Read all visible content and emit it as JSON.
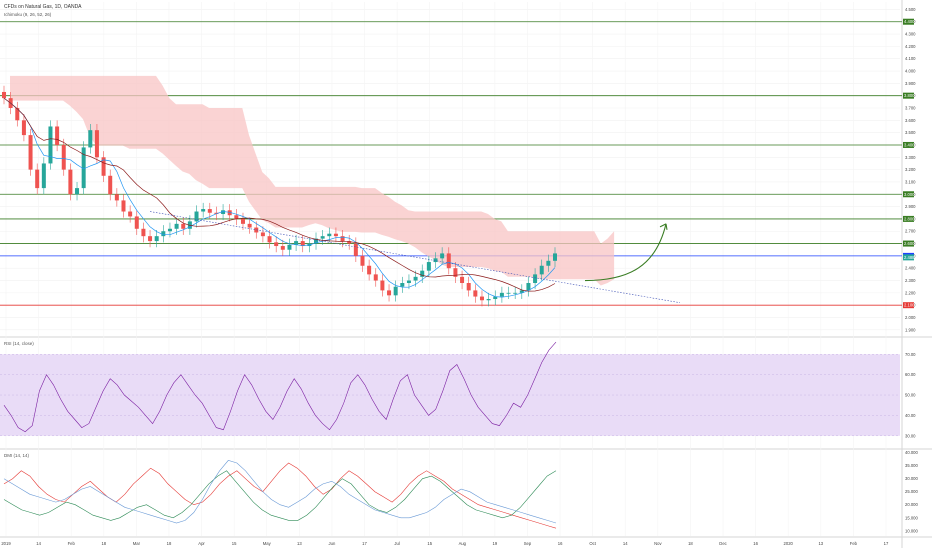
{
  "header": {
    "title": "CFDs on Natural Gas, 1D, OANDA",
    "indicator": "Ichimoku (9, 26, 52, 26)",
    "rsi_label": "RSI (14, close)",
    "dmi_label": "DMI (14, 14)"
  },
  "colors": {
    "up": "#26a69a",
    "down": "#ef5350",
    "tenkan": "#2196f3",
    "kijun": "#8b1a1a",
    "cloud_bull": "#b7e1b0",
    "cloud_bear": "#f8c4c4",
    "level_green": "#3a7d24",
    "level_red": "#e53935",
    "level_blue": "#1e40ff",
    "rsi_band": "#e9dcf7",
    "plus_di": "#2e8b57",
    "minus_di": "#e53935",
    "adx": "#6a9ad6"
  },
  "chart_data": [
    {
      "type": "line",
      "title": "CFDs on Natural Gas, 1D, OANDA",
      "x_ticks": [
        "2019",
        "14",
        "Feb",
        "18",
        "Mar",
        "18",
        "Apr",
        "15",
        "May",
        "13",
        "Jun",
        "17",
        "Jul",
        "15",
        "Aug",
        "19",
        "Sep",
        "16",
        "Oct",
        "14",
        "Nov",
        "18",
        "Dec",
        "16",
        "2020",
        "13",
        "Feb",
        "17"
      ],
      "y_ticks": [
        "1.900",
        "2.000",
        "2.100",
        "2.200",
        "2.300",
        "2.400",
        "2.500",
        "2.600",
        "2.700",
        "2.800",
        "2.900",
        "3.000",
        "3.100",
        "3.200",
        "3.300",
        "3.400",
        "3.500",
        "3.600",
        "3.700",
        "3.800",
        "3.900",
        "4.000",
        "4.100",
        "4.200",
        "4.300",
        "4.400",
        "4.500"
      ],
      "ylim": [
        1.85,
        4.56
      ],
      "levels": [
        {
          "value": 4.4,
          "label": "4.400",
          "color": "#3a7d24"
        },
        {
          "value": 3.8,
          "label": "3.800",
          "color": "#3a7d24"
        },
        {
          "value": 3.4,
          "label": "3.400",
          "color": "#3a7d24"
        },
        {
          "value": 3.0,
          "label": "3.000",
          "color": "#3a7d24"
        },
        {
          "value": 2.8,
          "label": "2.800",
          "color": "#3a7d24"
        },
        {
          "value": 2.6,
          "label": "2.600",
          "color": "#3a7d24"
        },
        {
          "value": 2.5,
          "label": "2.500",
          "color": "#1e40ff"
        },
        {
          "value": 2.1,
          "label": "2.100",
          "color": "#e53935"
        }
      ],
      "last_price": 2.488,
      "last_price_label": "2.488",
      "close_series": [
        3.78,
        3.7,
        3.6,
        3.48,
        3.2,
        3.05,
        3.25,
        3.55,
        3.4,
        3.2,
        3.0,
        3.05,
        3.38,
        3.52,
        3.3,
        3.15,
        3.0,
        2.95,
        2.86,
        2.82,
        2.72,
        2.66,
        2.62,
        2.66,
        2.7,
        2.72,
        2.76,
        2.72,
        2.78,
        2.86,
        2.88,
        2.85,
        2.84,
        2.87,
        2.83,
        2.8,
        2.76,
        2.73,
        2.69,
        2.66,
        2.61,
        2.58,
        2.55,
        2.59,
        2.62,
        2.58,
        2.6,
        2.64,
        2.66,
        2.68,
        2.66,
        2.62,
        2.6,
        2.5,
        2.42,
        2.35,
        2.3,
        2.22,
        2.18,
        2.25,
        2.28,
        2.3,
        2.33,
        2.38,
        2.45,
        2.48,
        2.52,
        2.4,
        2.33,
        2.28,
        2.22,
        2.17,
        2.14,
        2.15,
        2.17,
        2.2,
        2.2,
        2.2,
        2.22,
        2.28,
        2.35,
        2.42,
        2.46,
        2.52
      ],
      "annotation": {
        "type": "arrow",
        "direction": "up-right",
        "color": "#1b5e20"
      }
    },
    {
      "type": "line",
      "title": "RSI (14, close)",
      "y_ticks": [
        "30.00",
        "40.00",
        "50.00",
        "60.00",
        "70.00"
      ],
      "ylim": [
        24,
        78
      ],
      "band": [
        30,
        70
      ],
      "series": [
        {
          "values": [
            45,
            40,
            34,
            32,
            35,
            52,
            60,
            55,
            48,
            42,
            38,
            34,
            36,
            44,
            52,
            58,
            55,
            50,
            47,
            44,
            40,
            36,
            42,
            50,
            56,
            60,
            55,
            50,
            46,
            40,
            34,
            33,
            42,
            52,
            60,
            55,
            48,
            42,
            38,
            44,
            52,
            58,
            53,
            46,
            40,
            36,
            33,
            38,
            46,
            56,
            60,
            55,
            48,
            42,
            38,
            48,
            57,
            60,
            50,
            45,
            40,
            43,
            52,
            62,
            65,
            58,
            50,
            44,
            40,
            36,
            35,
            40,
            46,
            44,
            50,
            58,
            66,
            72,
            76
          ]
        }
      ]
    },
    {
      "type": "line",
      "title": "DMI (14, 14)",
      "y_ticks": [
        "10.000",
        "15.000",
        "20.000",
        "25.000",
        "30.000",
        "35.000",
        "40.000"
      ],
      "ylim": [
        8,
        41
      ],
      "series": [
        {
          "values": [
            28,
            30,
            33,
            31,
            27,
            24,
            22,
            21,
            24,
            27,
            29,
            26,
            23,
            21,
            24,
            28,
            31,
            34,
            32,
            28,
            25,
            22,
            20,
            21,
            24,
            28,
            31,
            33,
            30,
            27,
            25,
            29,
            33,
            36,
            34,
            31,
            27,
            24,
            26,
            30,
            33,
            31,
            28,
            25,
            23,
            21,
            24,
            28,
            31,
            33,
            31,
            29,
            26,
            24,
            22,
            20,
            19,
            18,
            17,
            16,
            15,
            14,
            13,
            12,
            11
          ]
        },
        {
          "values": [
            22,
            20,
            18,
            17,
            16,
            17,
            19,
            21,
            20,
            18,
            16,
            15,
            14,
            15,
            17,
            19,
            20,
            18,
            16,
            15,
            17,
            20,
            24,
            28,
            31,
            33,
            29,
            25,
            21,
            18,
            16,
            15,
            14,
            14,
            16,
            19,
            23,
            27,
            30,
            28,
            24,
            20,
            18,
            17,
            19,
            22,
            26,
            30,
            31,
            29,
            26,
            23,
            20,
            18,
            17,
            16,
            15,
            16,
            19,
            23,
            27,
            31,
            33
          ]
        },
        {
          "values": [
            30,
            28,
            26,
            24,
            23,
            22,
            21,
            22,
            24,
            26,
            27,
            25,
            23,
            21,
            19,
            18,
            17,
            16,
            15,
            14,
            13,
            14,
            17,
            22,
            28,
            33,
            37,
            36,
            33,
            29,
            25,
            22,
            20,
            19,
            21,
            23,
            26,
            28,
            29,
            27,
            24,
            22,
            20,
            18,
            17,
            16,
            15,
            15,
            16,
            17,
            19,
            22,
            24,
            26,
            25,
            23,
            21,
            20,
            19,
            18,
            17,
            16,
            15,
            14,
            13
          ]
        }
      ]
    }
  ]
}
